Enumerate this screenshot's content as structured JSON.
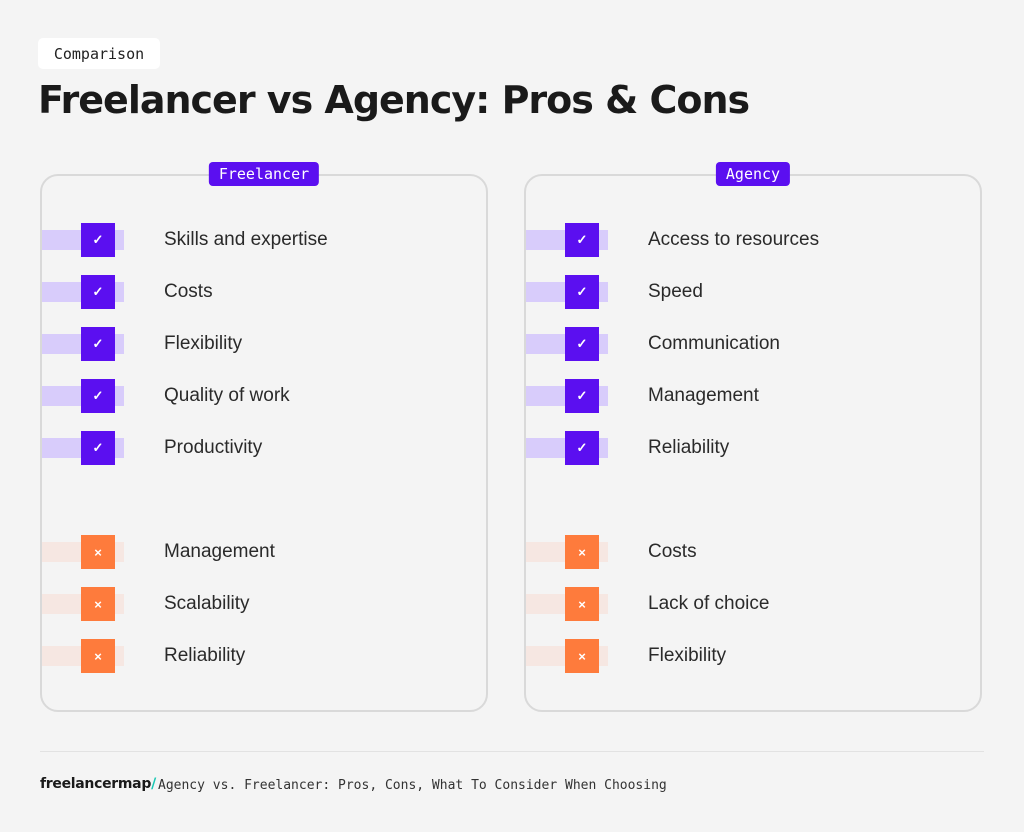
{
  "header": {
    "tag": "Comparison",
    "title": "Freelancer vs Agency: Pros & Cons"
  },
  "icons": {
    "pro": "checkmark-icon",
    "con": "cross-icon"
  },
  "colors": {
    "pro": "#5b0ff0",
    "pro_band": "#d8ccfb",
    "con": "#fe7b3c",
    "con_band": "#f6e7e2",
    "brand_accent": "#18c7b3"
  },
  "panels": [
    {
      "label": "Freelancer",
      "pros": [
        "Skills and expertise",
        "Costs",
        "Flexibility",
        "Quality of work",
        "Productivity"
      ],
      "cons": [
        "Management",
        "Scalability",
        "Reliability"
      ]
    },
    {
      "label": "Agency",
      "pros": [
        "Access to resources",
        "Speed",
        "Communication",
        "Management",
        "Reliability"
      ],
      "cons": [
        "Costs",
        "Lack of choice",
        "Flexibility"
      ]
    }
  ],
  "footer": {
    "brand": "freelancermap",
    "brand_slash": "/",
    "caption": "Agency vs. Freelancer: Pros, Cons, What To Consider When Choosing"
  }
}
